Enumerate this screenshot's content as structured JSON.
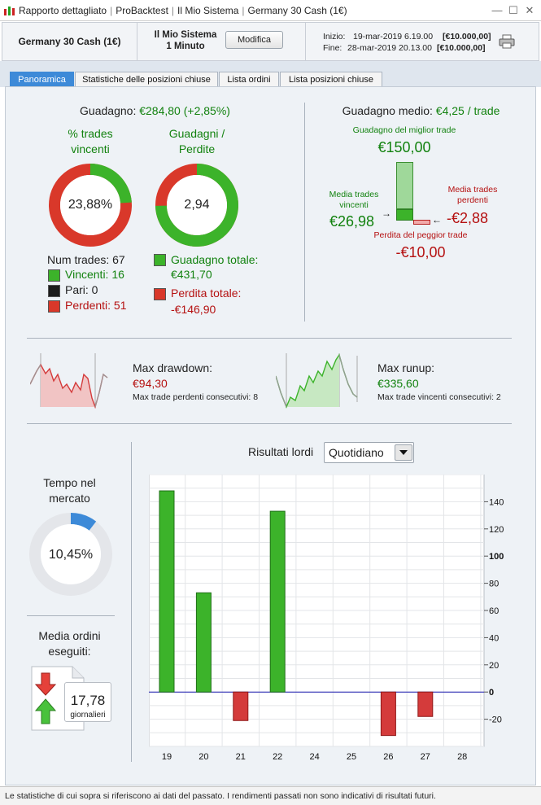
{
  "titlebar": {
    "items": [
      "Rapporto dettagliato",
      "ProBacktest",
      "Il Mio Sistema",
      "Germany 30 Cash (1€)"
    ]
  },
  "header": {
    "instrument": "Germany 30 Cash (1€)",
    "system_name": "Il Mio Sistema",
    "timeframe": "1 Minuto",
    "edit_button": "Modifica",
    "start_label": "Inizio:",
    "start_date": "19-mar-2019 6.19.00",
    "start_capital": "[€10.000,00]",
    "end_label": "Fine:",
    "end_date": "28-mar-2019 20.13.00",
    "end_capital": "[€10.000,00]"
  },
  "tabs": [
    "Panoramica",
    "Statistiche delle posizioni chiuse",
    "Lista ordini",
    "Lista posizioni chiuse"
  ],
  "overview": {
    "gain_label": "Guadagno:",
    "gain_value": "€284,80 (+2,85%)",
    "win_pct_title_1": "% trades",
    "win_pct_title_2": "vincenti",
    "win_pct_value": "23,88%",
    "win_pct_fraction": 0.2388,
    "gain_loss_title_1": "Guadagni /",
    "gain_loss_title_2": "Perdite",
    "gain_loss_value": "2,94",
    "gain_loss_fraction": 0.746,
    "num_trades": "Num trades: 67",
    "winners": "Vincenti: 16",
    "even": "Pari: 0",
    "losers": "Perdenti: 51",
    "total_gain_label": "Guadagno totale:",
    "total_gain_value": "€431,70",
    "total_loss_label": "Perdita totale:",
    "total_loss_value": "-€146,90",
    "avg_gain_label": "Guadagno medio:",
    "avg_gain_value": "€4,25 / trade",
    "best_trade_label": "Guadagno del miglior trade",
    "best_trade_value": "€150,00",
    "avg_win_label_1": "Media trades",
    "avg_win_label_2": "vincenti",
    "avg_win_value": "€26,98",
    "avg_loss_label_1": "Media trades",
    "avg_loss_label_2": "perdenti",
    "avg_loss_value": "-€2,88",
    "worst_trade_label": "Perdita del peggior trade",
    "worst_trade_value": "-€10,00",
    "max_drawdown_label": "Max drawdown:",
    "max_drawdown_value": "€94,30",
    "max_losing_streak": "Max trade perdenti consecutivi:  8",
    "max_runup_label": "Max runup:",
    "max_runup_value": "€335,60",
    "max_winning_streak": "Max trade vincenti consecutivi: 2",
    "time_in_market_1": "Tempo nel",
    "time_in_market_2": "mercato",
    "time_in_market_value": "10,45%",
    "time_in_market_fraction": 0.1045,
    "avg_orders_1": "Media ordini",
    "avg_orders_2": "eseguiti:",
    "avg_orders_value": "17,78",
    "avg_orders_unit": "giornalieri",
    "results_label": "Risultati lordi",
    "results_period": "Quotidiano"
  },
  "footer": {
    "disclaimer": "Le statistiche di cui sopra si riferiscono ai dati del passato. I rendimenti passati non sono indicativi di risultati futuri."
  },
  "colors": {
    "gain": "#12820f",
    "loss": "#b51111",
    "tab_active": "#3d8ad8"
  },
  "chart_data": {
    "type": "bar",
    "categories": [
      "19",
      "20",
      "21",
      "22",
      "24",
      "25",
      "26",
      "27",
      "28"
    ],
    "values": [
      148,
      73,
      -21,
      133,
      0,
      0,
      -32,
      -18,
      0
    ],
    "ylim": [
      -40,
      160
    ],
    "yticks": [
      -20,
      0,
      20,
      40,
      60,
      80,
      100,
      120,
      140
    ],
    "grid": true
  }
}
